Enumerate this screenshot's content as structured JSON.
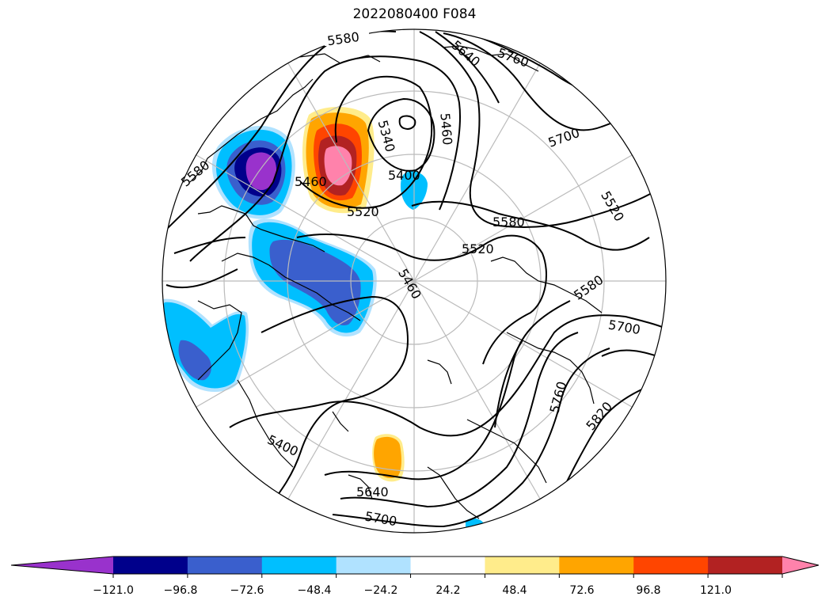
{
  "title": "2022080400 F084",
  "map": {
    "projection": "north-polar-stereographic",
    "contour_labels": [
      "5580",
      "5460",
      "5340",
      "5460",
      "5400",
      "5640",
      "5760",
      "5700",
      "5520",
      "5580",
      "5520",
      "5460",
      "5580",
      "5700",
      "5760",
      "5820",
      "5400",
      "5640",
      "5700",
      "5580",
      "5520"
    ],
    "anomaly_regions": [
      {
        "name": "positive-anomaly-north-pacific",
        "max_level": 121.0
      },
      {
        "name": "negative-anomaly-alaska",
        "min_level": -121.0
      },
      {
        "name": "negative-anomaly-canada",
        "min_level": -72.6
      },
      {
        "name": "negative-anomaly-atlantic",
        "min_level": -72.6
      },
      {
        "name": "positive-anomaly-europe",
        "max_level": 72.6
      }
    ]
  },
  "colorbar": {
    "tick_labels": [
      "−121.0",
      "−96.8",
      "−72.6",
      "−48.4",
      "−24.2",
      "24.2",
      "48.4",
      "72.6",
      "96.8",
      "121.0"
    ],
    "colors": [
      "#9932cc",
      "#00008b",
      "#3a5fcd",
      "#00bfff",
      "#b0e2ff",
      "#ffffff",
      "#ffec8b",
      "#ffa500",
      "#ff4500",
      "#b22222",
      "#ff82ab"
    ]
  }
}
